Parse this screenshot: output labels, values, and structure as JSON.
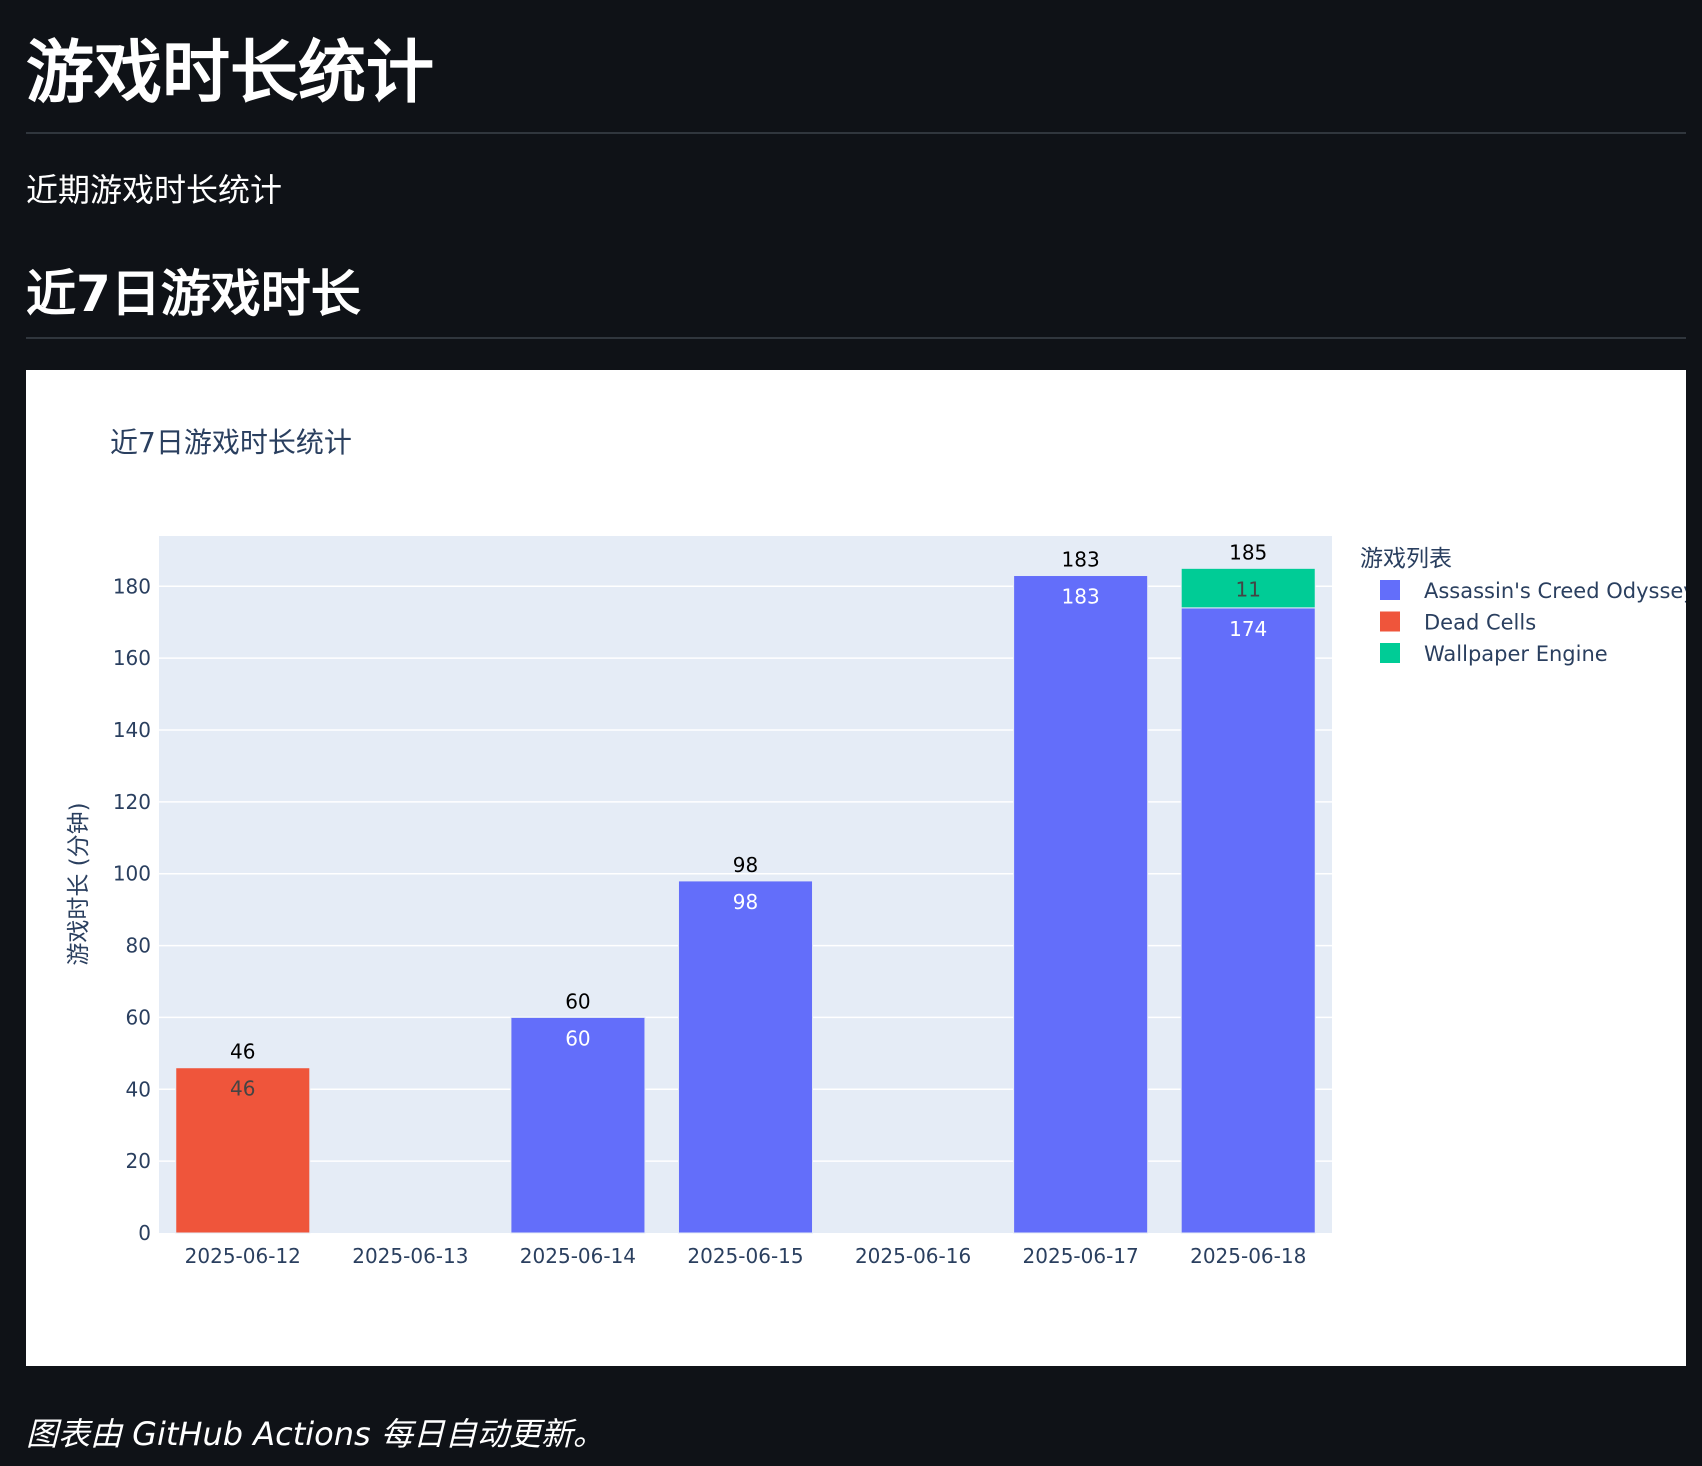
{
  "page": {
    "title": "游戏时长统计",
    "subtitle": "近期游戏时长统计",
    "section_title": "近7日游戏时长",
    "footnote": "图表由 GitHub Actions 每日自动更新。"
  },
  "colors": {
    "page_background": "#0f1217",
    "plot_background": "#e5ecf6",
    "grid": "#ffffff",
    "axis_text": "#2a3f5f"
  },
  "chart_data": {
    "type": "bar",
    "barmode": "stack",
    "title": "近7日游戏时长统计",
    "xlabel": "",
    "ylabel": "游戏时长 (分钟)",
    "ylim": [
      0,
      194
    ],
    "yticks": [
      0,
      20,
      40,
      60,
      80,
      100,
      120,
      140,
      160,
      180
    ],
    "grid": true,
    "legend_title": "游戏列表",
    "legend_position": "right",
    "categories": [
      "2025-06-12",
      "2025-06-13",
      "2025-06-14",
      "2025-06-15",
      "2025-06-16",
      "2025-06-17",
      "2025-06-18"
    ],
    "series": [
      {
        "name": "Assassin's Creed Odyssey",
        "color": "#636efa",
        "label_color": "#ffffff",
        "values": [
          0,
          0,
          60,
          98,
          0,
          183,
          174
        ]
      },
      {
        "name": "Dead Cells",
        "color": "#ef553b",
        "label_color": "#444444",
        "values": [
          46,
          0,
          0,
          0,
          0,
          0,
          0
        ]
      },
      {
        "name": "Wallpaper Engine",
        "color": "#00cc96",
        "label_color": "#444444",
        "values": [
          0,
          0,
          0,
          0,
          0,
          0,
          11
        ]
      }
    ],
    "totals": [
      46,
      0,
      60,
      98,
      0,
      183,
      185
    ]
  }
}
